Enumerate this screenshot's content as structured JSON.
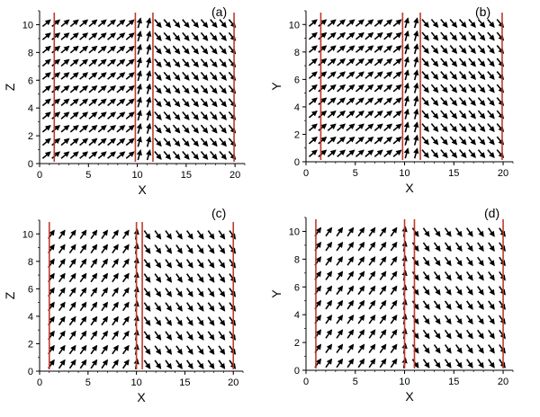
{
  "colors": {
    "arrow": "#000000",
    "boundary": "#c0392b",
    "axis": "#000000"
  },
  "chart_data": [
    {
      "type": "vector-field",
      "panel_label": "(a)",
      "xlabel": "X",
      "ylabel": "Z",
      "xlim": [
        0,
        21
      ],
      "ylim": [
        0,
        11
      ],
      "xticks": [
        "0",
        "5",
        "10",
        "15",
        "20"
      ],
      "yticks": [
        "0",
        "2",
        "4",
        "6",
        "8",
        "10"
      ],
      "boundaries": [
        1.5,
        9.8,
        11.6,
        19.9
      ],
      "grid": {
        "nx": 21,
        "ny": 11,
        "x_start": 0.7,
        "x_step": 0.95,
        "y_start": 0.6,
        "y_step": 0.95
      },
      "segments": [
        {
          "x_min": 0,
          "x_max": 9.8,
          "angle_deg": 40
        },
        {
          "x_min": 9.8,
          "x_max": 11.6,
          "angle_deg": 75
        },
        {
          "x_min": 11.6,
          "x_max": 21,
          "angle_deg": -50
        }
      ]
    },
    {
      "type": "vector-field",
      "panel_label": "(b)",
      "xlabel": "X",
      "ylabel": "Y",
      "xlim": [
        0,
        21
      ],
      "ylim": [
        0,
        11
      ],
      "xticks": [
        "0",
        "5",
        "10",
        "15",
        "20"
      ],
      "yticks": [
        "0",
        "2",
        "4",
        "6",
        "8",
        "10"
      ],
      "boundaries": [
        1.5,
        9.8,
        11.6,
        19.9
      ],
      "grid": {
        "nx": 21,
        "ny": 11,
        "x_start": 0.7,
        "x_step": 0.95,
        "y_start": 0.6,
        "y_step": 0.95
      },
      "segments": [
        {
          "x_min": 0,
          "x_max": 9.8,
          "angle_deg": 40
        },
        {
          "x_min": 9.8,
          "x_max": 11.6,
          "angle_deg": 75
        },
        {
          "x_min": 11.6,
          "x_max": 21,
          "angle_deg": -50
        }
      ]
    },
    {
      "type": "vector-field",
      "panel_label": "(c)",
      "xlabel": "X",
      "ylabel": "Z",
      "xlim": [
        0,
        21
      ],
      "ylim": [
        0,
        11
      ],
      "xticks": [
        "0",
        "5",
        "10",
        "15",
        "20"
      ],
      "yticks": [
        "0",
        "2",
        "4",
        "6",
        "8",
        "10"
      ],
      "boundaries": [
        1.0,
        10.0,
        10.6,
        20.0
      ],
      "grid": {
        "nx": 18,
        "ny": 10,
        "x_start": 1.2,
        "x_step": 1.1,
        "y_start": 0.5,
        "y_step": 1.05
      },
      "segments": [
        {
          "x_min": 0,
          "x_max": 10.0,
          "angle_deg": 55
        },
        {
          "x_min": 10.0,
          "x_max": 10.6,
          "angle_deg": 80
        },
        {
          "x_min": 10.6,
          "x_max": 21,
          "angle_deg": -55
        }
      ]
    },
    {
      "type": "vector-field",
      "panel_label": "(d)",
      "xlabel": "X",
      "ylabel": "Y",
      "xlim": [
        0,
        21
      ],
      "ylim": [
        0,
        11
      ],
      "xticks": [
        "0",
        "5",
        "10",
        "15",
        "20"
      ],
      "yticks": [
        "0",
        "2",
        "4",
        "6",
        "8",
        "10"
      ],
      "boundaries": [
        1.0,
        10.0,
        11.0,
        20.0
      ],
      "grid": {
        "nx": 18,
        "ny": 10,
        "x_start": 1.2,
        "x_step": 1.1,
        "y_start": 0.5,
        "y_step": 1.05
      },
      "segments": [
        {
          "x_min": 0,
          "x_max": 10.0,
          "angle_deg": 55
        },
        {
          "x_min": 10.0,
          "x_max": 11.0,
          "angle_deg": 80
        },
        {
          "x_min": 11.0,
          "x_max": 21,
          "angle_deg": -55
        }
      ]
    }
  ]
}
